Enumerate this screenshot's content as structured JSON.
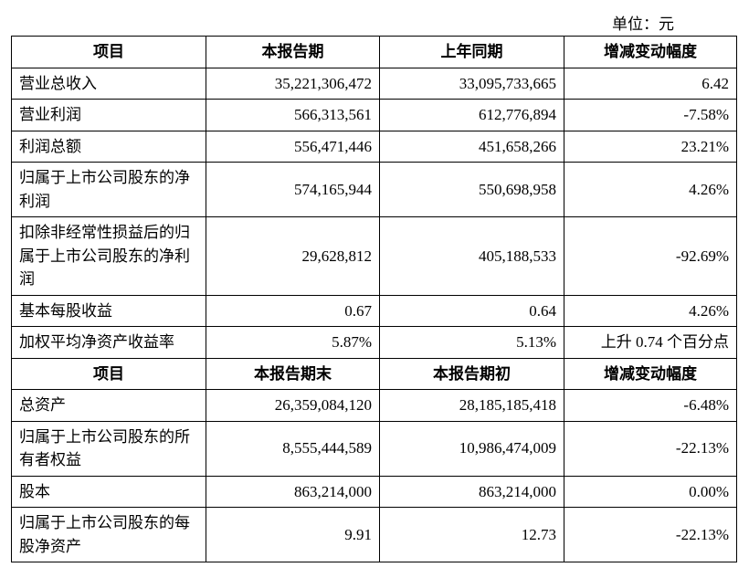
{
  "unit_label": "单位：元",
  "section1": {
    "headers": [
      "项目",
      "本报告期",
      "上年同期",
      "增减变动幅度"
    ],
    "rows": [
      {
        "label": "营业总收入",
        "col1": "35,221,306,472",
        "col2": "33,095,733,665",
        "col3": "6.42"
      },
      {
        "label": "营业利润",
        "col1": "566,313,561",
        "col2": "612,776,894",
        "col3": "-7.58%"
      },
      {
        "label": "利润总额",
        "col1": "556,471,446",
        "col2": "451,658,266",
        "col3": "23.21%"
      },
      {
        "label": "归属于上市公司股东的净利润",
        "col1": "574,165,944",
        "col2": "550,698,958",
        "col3": "4.26%"
      },
      {
        "label": "扣除非经常性损益后的归属于上市公司股东的净利润",
        "col1": "29,628,812",
        "col2": "405,188,533",
        "col3": "-92.69%"
      },
      {
        "label": "基本每股收益",
        "col1": "0.67",
        "col2": "0.64",
        "col3": "4.26%"
      },
      {
        "label": "加权平均净资产收益率",
        "col1": "5.87%",
        "col2": "5.13%",
        "col3": "上升 0.74 个百分点"
      }
    ]
  },
  "section2": {
    "headers": [
      "项目",
      "本报告期末",
      "本报告期初",
      "增减变动幅度"
    ],
    "rows": [
      {
        "label": "总资产",
        "col1": "26,359,084,120",
        "col2": "28,185,185,418",
        "col3": "-6.48%"
      },
      {
        "label": "归属于上市公司股东的所有者权益",
        "col1": "8,555,444,589",
        "col2": "10,986,474,009",
        "col3": "-22.13%"
      },
      {
        "label": "股本",
        "col1": "863,214,000",
        "col2": "863,214,000",
        "col3": "0.00%"
      },
      {
        "label": "归属于上市公司股东的每股净资产",
        "col1": "9.91",
        "col2": "12.73",
        "col3": "-22.13%"
      }
    ]
  }
}
